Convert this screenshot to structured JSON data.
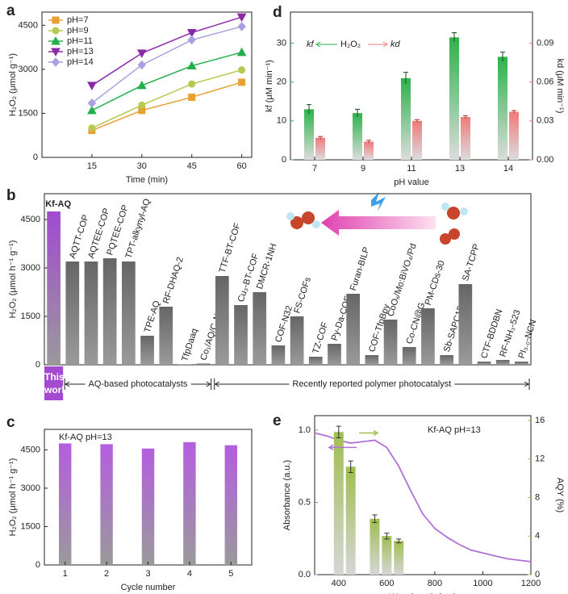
{
  "chart_data": [
    {
      "panel": "a",
      "type": "line",
      "xlabel": "Time (min)",
      "ylabel": "H₂O₂ (μmol g⁻¹)",
      "x": [
        15,
        30,
        45,
        60
      ],
      "xlim": [
        0,
        63
      ],
      "xticks": [
        15,
        30,
        45,
        60
      ],
      "ylim": [
        0,
        4950
      ],
      "yticks": [
        0,
        1500,
        3000,
        4500
      ],
      "series": [
        {
          "name": "pH=7",
          "color": "#e8a030",
          "marker": "square",
          "values": [
            920,
            1600,
            2050,
            2560
          ]
        },
        {
          "name": "pH=9",
          "color": "#b8c850",
          "marker": "circle",
          "values": [
            1000,
            1780,
            2500,
            2980
          ]
        },
        {
          "name": "pH=11",
          "color": "#22b04a",
          "marker": "triangle",
          "values": [
            1600,
            2450,
            3120,
            3580
          ]
        },
        {
          "name": "pH=13",
          "color": "#8a2aa8",
          "marker": "triangle-down",
          "values": [
            2450,
            3550,
            4250,
            4780
          ]
        },
        {
          "name": "pH=14",
          "color": "#a8a0e0",
          "marker": "diamond",
          "values": [
            1850,
            3150,
            4000,
            4460
          ]
        }
      ]
    },
    {
      "panel": "b",
      "type": "bar",
      "ylabel": "H₂O₂ (μmol h⁻¹ g⁻¹)",
      "categories": [
        "Kf-AQ",
        "AQTT-COP",
        "AQTEE-COP",
        "PQTEE-COP",
        "TPT-alkynyl-AQ",
        "TPE-AQ",
        "RF-DHAQ-2",
        "TfpDaaq",
        "Co₁/AQ/C₃N₄",
        "TTF-BT-COF",
        "Cu₃-BT-COF",
        "DMCR-1NH",
        "COF-N32",
        "FS-COFs",
        "TZ-COF",
        "Py-Da-COF",
        "Furan-BILP",
        "COF-TfpBpy",
        "CoOₓ/Mo:BiVO₄/Pd",
        "Co-CN@G",
        "PM-CDs-30",
        "Sb-SAPC15",
        "SA-TCPP",
        "CTF-BDDBN",
        "RF-NH₃-523",
        "PI₃.₀-NCN"
      ],
      "values": [
        4750,
        3200,
        3200,
        3300,
        3200,
        900,
        1800,
        10,
        40,
        2750,
        1850,
        2250,
        600,
        1500,
        250,
        650,
        2200,
        300,
        1400,
        550,
        1750,
        300,
        2500,
        100,
        150,
        100
      ],
      "bar_colors": [
        "#a24ad0",
        "#666666",
        "#666666",
        "#666666",
        "#666666",
        "#666666",
        "#666666",
        "#666666",
        "#666666",
        "#666666",
        "#666666",
        "#666666",
        "#666666",
        "#666666",
        "#666666",
        "#666666",
        "#666666",
        "#666666",
        "#666666",
        "#666666",
        "#666666",
        "#666666",
        "#666666",
        "#666666",
        "#666666",
        "#666666"
      ],
      "ylim": [
        0,
        5300
      ],
      "yticks": [
        0,
        1500,
        3000,
        4500
      ],
      "groups": [
        {
          "label": "This work",
          "start": 0,
          "end": 0
        },
        {
          "label": "AQ-based photocatalysts",
          "start": 1,
          "end": 8
        },
        {
          "label": "Recently reported polymer photocatalyst",
          "start": 9,
          "end": 25
        }
      ]
    },
    {
      "panel": "c",
      "type": "bar",
      "annotation": "Kf-AQ  pH=13",
      "xlabel": "Cycle number",
      "ylabel": "H₂O₂ (μmol h⁻¹ g⁻¹)",
      "categories": [
        "1",
        "2",
        "3",
        "4",
        "5"
      ],
      "values": [
        4750,
        4720,
        4550,
        4800,
        4680
      ],
      "color": "#b45ee0",
      "ylim": [
        0,
        5300
      ],
      "yticks": [
        0,
        1500,
        3000,
        4500
      ]
    },
    {
      "panel": "d",
      "type": "bar",
      "xlabel": "pH value",
      "ylabel": "kf (μM min⁻¹)",
      "y2label": "kd (μM min⁻¹)",
      "annotation": "H₂O₂",
      "categories": [
        "7",
        "9",
        "11",
        "13",
        "14"
      ],
      "series": [
        {
          "name": "kf",
          "color": "#2db34a",
          "values": [
            13,
            12,
            21,
            31.5,
            26.5
          ],
          "errors": [
            1.2,
            1,
            1.5,
            1.2,
            1.2
          ]
        },
        {
          "name": "kd",
          "color": "#f07a7a",
          "axis": "y2",
          "values": [
            0.017,
            0.014,
            0.03,
            0.033,
            0.037
          ],
          "errors": [
            0.001,
            0.001,
            0.001,
            0.001,
            0.001
          ]
        }
      ],
      "ylim": [
        0,
        38
      ],
      "yticks": [
        0,
        10,
        20,
        30
      ],
      "y2lim": [
        0,
        0.114
      ],
      "y2ticks": [
        {
          "value": 0,
          "label": "0.00"
        },
        0.03,
        0.06,
        0.09
      ]
    },
    {
      "panel": "e",
      "type": "combo",
      "annotation": "Kf-AQ  pH=13",
      "xlabel": "Wavelength (nm)",
      "ylabel": "Absorbance (a.u.)",
      "y2label": "AQY (%)",
      "xlim": [
        300,
        1200
      ],
      "xticks": [
        400,
        600,
        800,
        1000,
        1200
      ],
      "ylim": [
        0,
        1.1
      ],
      "yticks": [
        {
          "value": 0,
          "label": "0.0"
        },
        0.5,
        {
          "value": 1,
          "label": "1.0"
        }
      ],
      "y2lim": [
        0,
        16.5
      ],
      "y2ticks": [
        0,
        4,
        8,
        12,
        16
      ],
      "series": [
        {
          "style": "line",
          "color": "#b070d8",
          "x": [
            300,
            350,
            400,
            450,
            500,
            550,
            600,
            650,
            700,
            750,
            800,
            850,
            900,
            950,
            1000,
            1050,
            1100,
            1150,
            1200
          ],
          "values": [
            0.98,
            0.96,
            0.93,
            0.91,
            0.92,
            0.93,
            0.88,
            0.75,
            0.58,
            0.42,
            0.32,
            0.26,
            0.21,
            0.17,
            0.15,
            0.13,
            0.11,
            0.1,
            0.09
          ]
        },
        {
          "style": "bar",
          "color": "#9fbf50",
          "axis": "y2",
          "x": [
            400,
            450,
            550,
            600,
            650
          ],
          "values": [
            14.8,
            11.2,
            5.8,
            4,
            3.5
          ],
          "errors": [
            0.6,
            0.6,
            0.4,
            0.3,
            0.2
          ]
        }
      ]
    }
  ]
}
